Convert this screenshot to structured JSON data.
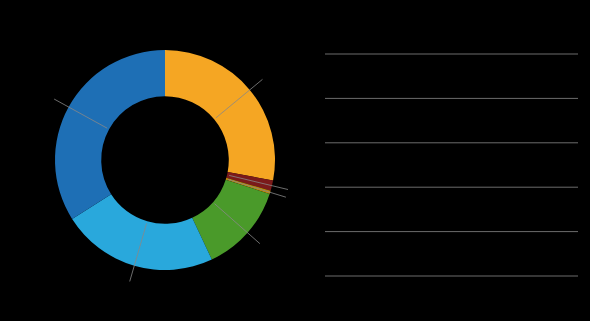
{
  "chart_data": {
    "type": "pie",
    "values": [
      28,
      1.5,
      0.5,
      13,
      23,
      34
    ],
    "colors": [
      "#F5A623",
      "#7B1A1A",
      "#B8860B",
      "#4A9A2A",
      "#29A8DC",
      "#1E6FB5"
    ]
  }
}
